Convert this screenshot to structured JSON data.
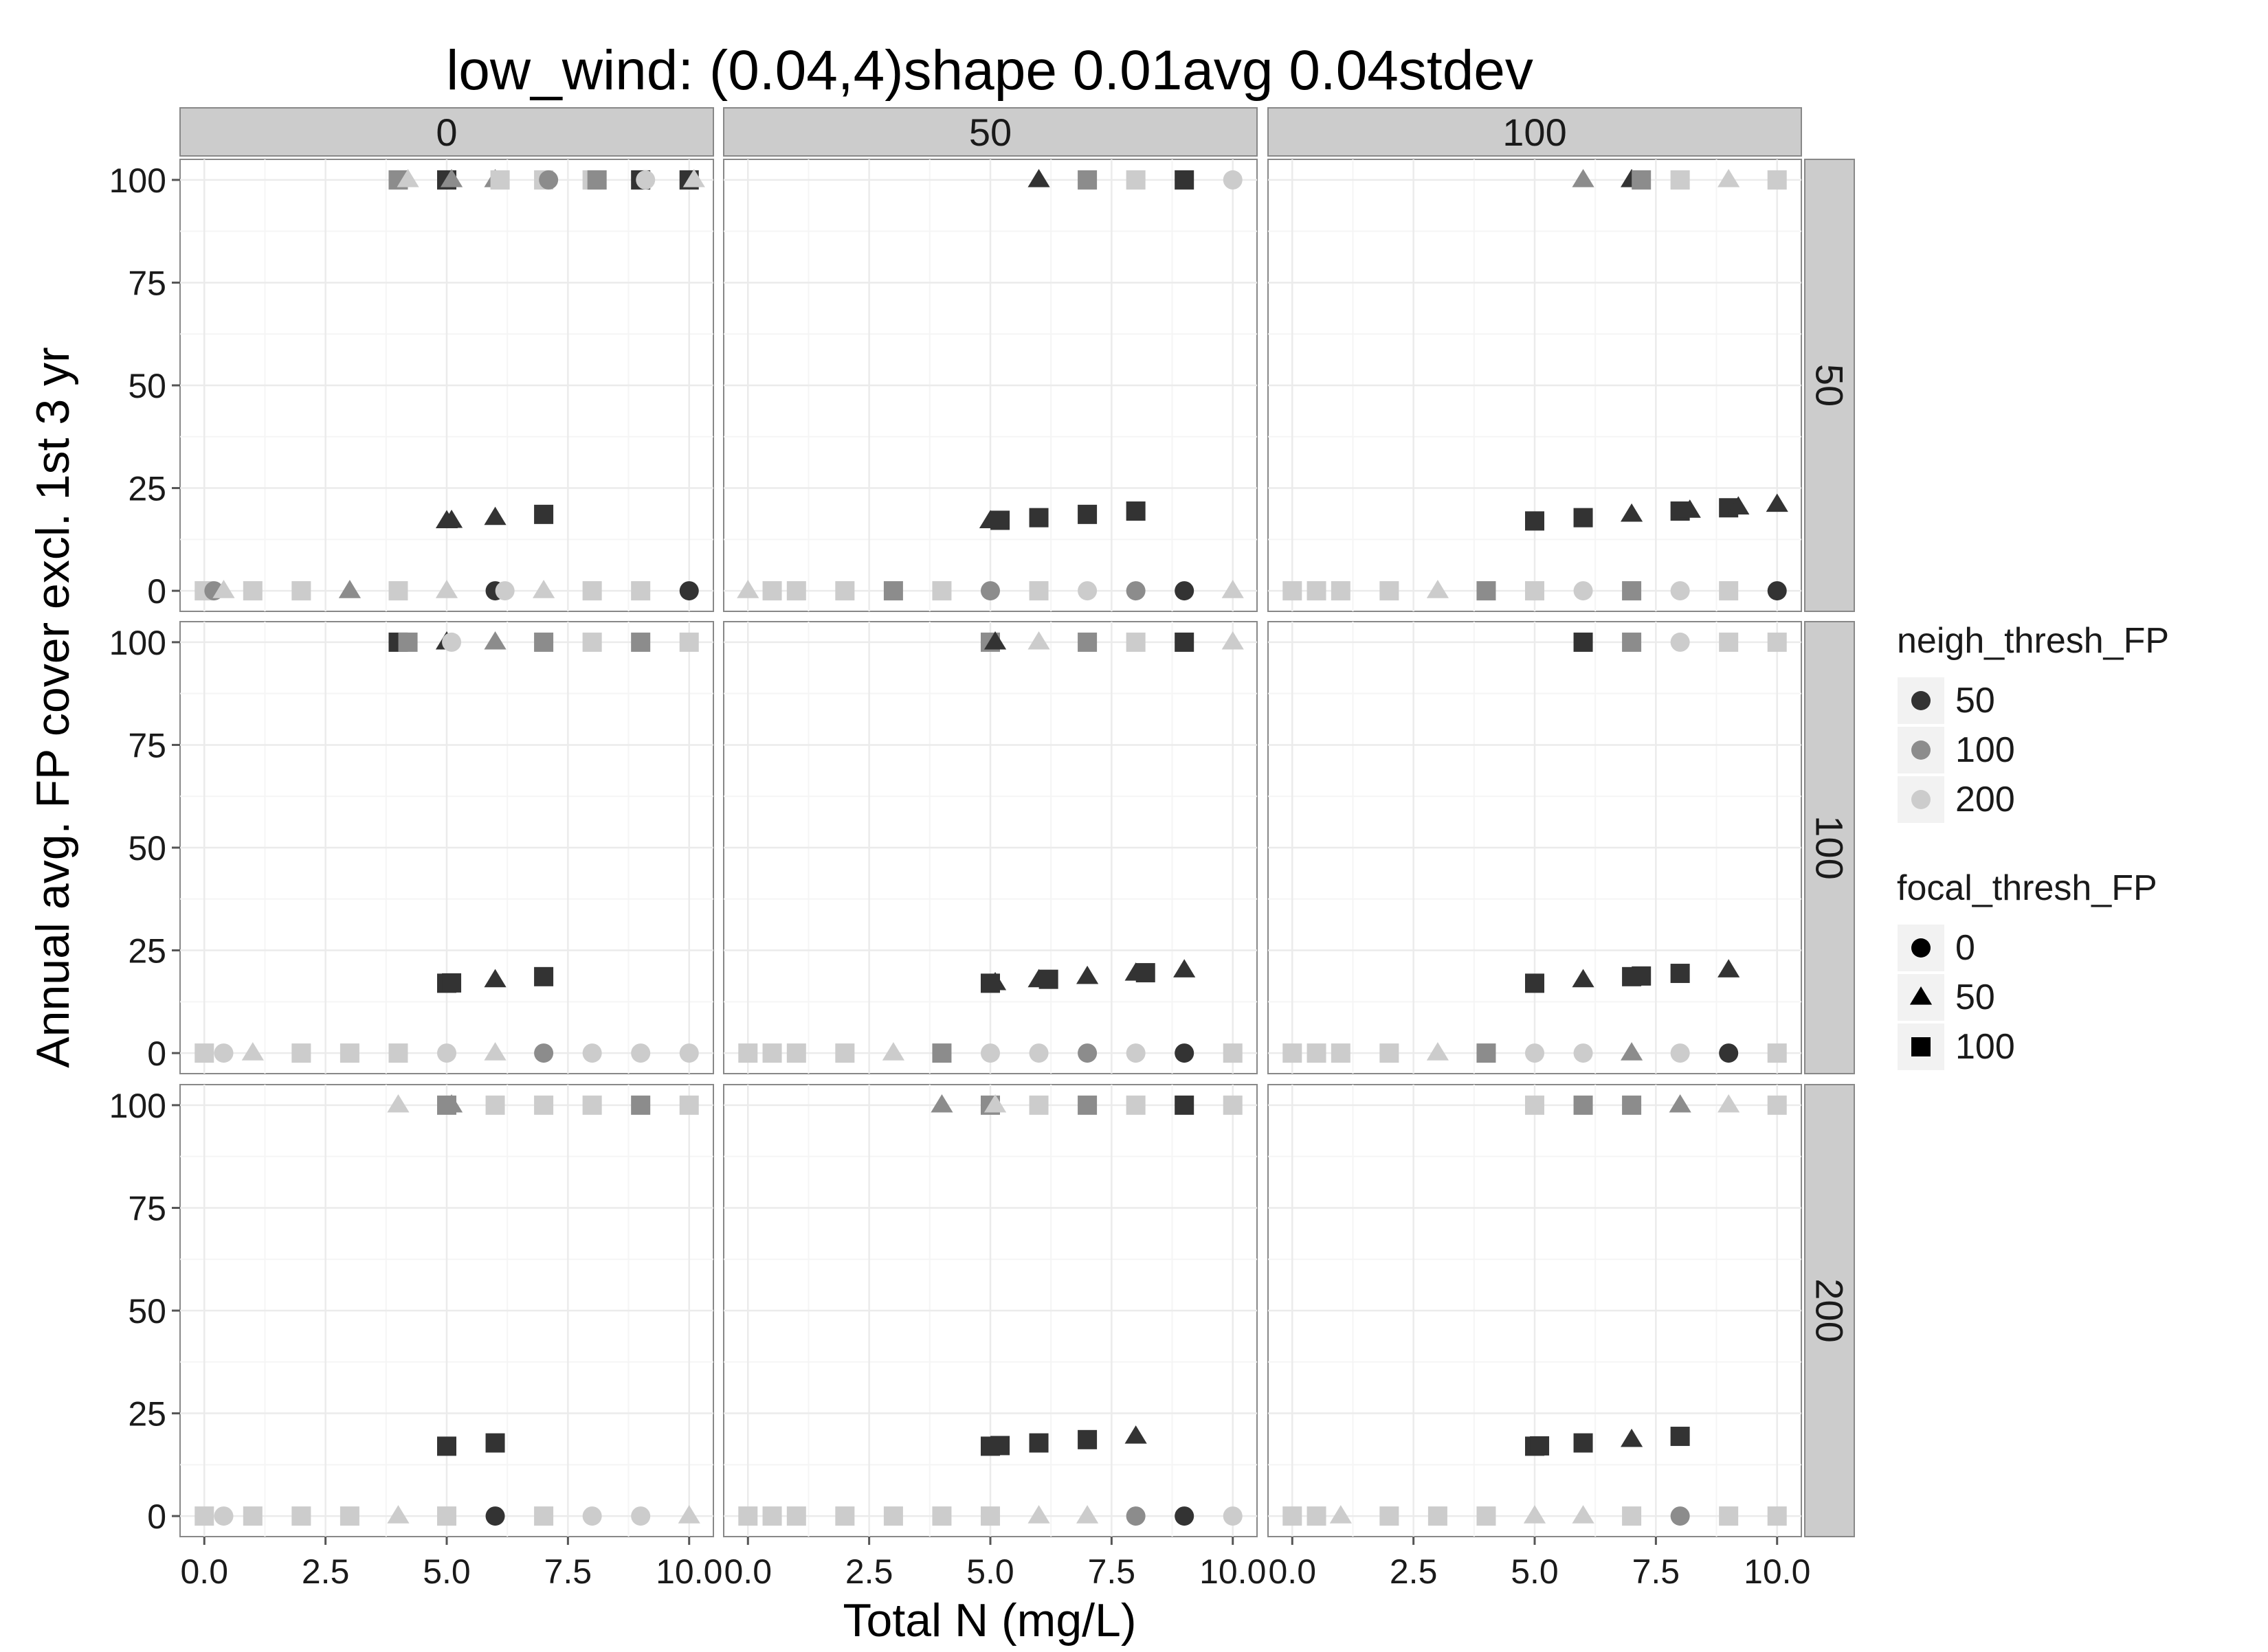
{
  "chart_data": {
    "type": "scatter",
    "title": "low_wind: (0.04,4)shape 0.01avg 0.04stdev",
    "xlabel": "Total N (mg/L)",
    "ylabel": "Annual avg. FP cover excl. 1st 3 yr",
    "xlim": [
      -0.5,
      10.5
    ],
    "ylim": [
      -5,
      105
    ],
    "x_ticks": [
      "0.0",
      "2.5",
      "5.0",
      "7.5",
      "10.0"
    ],
    "y_ticks": [
      "0",
      "25",
      "50",
      "75",
      "100"
    ],
    "grid": true,
    "facet_cols": [
      "0",
      "50",
      "100"
    ],
    "facet_rows": [
      "50",
      "100",
      "200"
    ],
    "legend_position": "right",
    "colors": {
      "50": "#333333",
      "100": "#8c8c8c",
      "200": "#cccccc"
    },
    "legends": [
      {
        "title": "neigh_thresh_FP",
        "kind": "color",
        "entries": [
          "50",
          "100",
          "200"
        ]
      },
      {
        "title": "focal_thresh_FP",
        "kind": "shape",
        "entries": [
          {
            "label": "0",
            "shape": "circle"
          },
          {
            "label": "50",
            "shape": "triangle"
          },
          {
            "label": "100",
            "shape": "square"
          }
        ]
      }
    ],
    "panels": [
      {
        "col": "0",
        "row": "50",
        "top": [
          [
            4,
            "100",
            "s"
          ],
          [
            4.2,
            "200",
            "t"
          ],
          [
            5,
            "50",
            "s"
          ],
          [
            5.1,
            "100",
            "t"
          ],
          [
            6,
            "100",
            "t"
          ],
          [
            6.1,
            "200",
            "s"
          ],
          [
            7,
            "200",
            "s"
          ],
          [
            7.1,
            "100",
            "c"
          ],
          [
            8,
            "200",
            "s"
          ],
          [
            8.1,
            "100",
            "s"
          ],
          [
            9,
            "50",
            "s"
          ],
          [
            9.1,
            "200",
            "c"
          ],
          [
            10,
            "50",
            "s"
          ],
          [
            10.1,
            "200",
            "t"
          ]
        ],
        "mid": [
          [
            5,
            "50",
            "t"
          ],
          [
            5.1,
            "50",
            "t"
          ],
          [
            6,
            "50",
            "t"
          ],
          [
            7,
            "50",
            "s"
          ]
        ],
        "bottom": [
          [
            0,
            "200",
            "s"
          ],
          [
            0.2,
            "100",
            "c"
          ],
          [
            0.4,
            "200",
            "t"
          ],
          [
            1,
            "200",
            "s"
          ],
          [
            2,
            "200",
            "s"
          ],
          [
            3,
            "100",
            "t"
          ],
          [
            4,
            "200",
            "s"
          ],
          [
            5,
            "200",
            "t"
          ],
          [
            6,
            "50",
            "c"
          ],
          [
            6.2,
            "200",
            "c"
          ],
          [
            7,
            "200",
            "t"
          ],
          [
            8,
            "200",
            "s"
          ],
          [
            9,
            "200",
            "s"
          ],
          [
            10,
            "50",
            "c"
          ]
        ]
      },
      {
        "col": "50",
        "row": "50",
        "top": [
          [
            6,
            "50",
            "t"
          ],
          [
            7,
            "100",
            "s"
          ],
          [
            8,
            "200",
            "s"
          ],
          [
            9,
            "50",
            "s"
          ],
          [
            10,
            "200",
            "c"
          ]
        ],
        "mid": [
          [
            5,
            "50",
            "t"
          ],
          [
            5.2,
            "50",
            "s"
          ],
          [
            6,
            "50",
            "s"
          ],
          [
            7,
            "50",
            "s"
          ],
          [
            8,
            "50",
            "s"
          ]
        ],
        "bottom": [
          [
            0,
            "200",
            "t"
          ],
          [
            0.5,
            "200",
            "s"
          ],
          [
            1,
            "200",
            "s"
          ],
          [
            2,
            "200",
            "s"
          ],
          [
            3,
            "100",
            "s"
          ],
          [
            4,
            "200",
            "s"
          ],
          [
            5,
            "100",
            "c"
          ],
          [
            6,
            "200",
            "s"
          ],
          [
            7,
            "200",
            "c"
          ],
          [
            8,
            "100",
            "c"
          ],
          [
            9,
            "50",
            "c"
          ],
          [
            10,
            "200",
            "t"
          ]
        ]
      },
      {
        "col": "100",
        "row": "50",
        "top": [
          [
            6,
            "100",
            "t"
          ],
          [
            7,
            "50",
            "t"
          ],
          [
            7.2,
            "100",
            "s"
          ],
          [
            8,
            "200",
            "s"
          ],
          [
            9,
            "200",
            "t"
          ],
          [
            10,
            "200",
            "s"
          ]
        ],
        "mid": [
          [
            5,
            "50",
            "s"
          ],
          [
            6,
            "50",
            "s"
          ],
          [
            7,
            "50",
            "t"
          ],
          [
            8,
            "50",
            "s"
          ],
          [
            8.2,
            "50",
            "t"
          ],
          [
            9,
            "50",
            "s"
          ],
          [
            9.2,
            "50",
            "t"
          ],
          [
            10,
            "50",
            "t"
          ]
        ],
        "bottom": [
          [
            0,
            "200",
            "s"
          ],
          [
            0.5,
            "200",
            "s"
          ],
          [
            1,
            "200",
            "s"
          ],
          [
            2,
            "200",
            "s"
          ],
          [
            3,
            "200",
            "t"
          ],
          [
            4,
            "100",
            "s"
          ],
          [
            5,
            "200",
            "s"
          ],
          [
            6,
            "200",
            "c"
          ],
          [
            7,
            "100",
            "s"
          ],
          [
            8,
            "200",
            "c"
          ],
          [
            9,
            "200",
            "s"
          ],
          [
            10,
            "50",
            "c"
          ]
        ]
      },
      {
        "col": "0",
        "row": "100",
        "top": [
          [
            4,
            "50",
            "s"
          ],
          [
            4.2,
            "100",
            "s"
          ],
          [
            5,
            "50",
            "t"
          ],
          [
            5.1,
            "200",
            "c"
          ],
          [
            6,
            "100",
            "t"
          ],
          [
            7,
            "100",
            "s"
          ],
          [
            8,
            "200",
            "s"
          ],
          [
            9,
            "100",
            "s"
          ],
          [
            10,
            "200",
            "s"
          ]
        ],
        "mid": [
          [
            5,
            "50",
            "s"
          ],
          [
            5.1,
            "50",
            "s"
          ],
          [
            6,
            "50",
            "t"
          ],
          [
            7,
            "50",
            "s"
          ]
        ],
        "bottom": [
          [
            0,
            "200",
            "s"
          ],
          [
            0.4,
            "200",
            "c"
          ],
          [
            1,
            "200",
            "t"
          ],
          [
            2,
            "200",
            "s"
          ],
          [
            3,
            "200",
            "s"
          ],
          [
            4,
            "200",
            "s"
          ],
          [
            5,
            "200",
            "c"
          ],
          [
            6,
            "200",
            "t"
          ],
          [
            7,
            "100",
            "c"
          ],
          [
            8,
            "200",
            "c"
          ],
          [
            9,
            "200",
            "c"
          ],
          [
            10,
            "200",
            "c"
          ]
        ]
      },
      {
        "col": "50",
        "row": "100",
        "top": [
          [
            5,
            "100",
            "s"
          ],
          [
            5.1,
            "50",
            "t"
          ],
          [
            6,
            "200",
            "t"
          ],
          [
            7,
            "100",
            "s"
          ],
          [
            8,
            "200",
            "s"
          ],
          [
            9,
            "50",
            "s"
          ],
          [
            10,
            "200",
            "t"
          ]
        ],
        "mid": [
          [
            5,
            "50",
            "s"
          ],
          [
            5.1,
            "50",
            "t"
          ],
          [
            6,
            "50",
            "t"
          ],
          [
            6.2,
            "50",
            "s"
          ],
          [
            7,
            "50",
            "t"
          ],
          [
            8,
            "50",
            "t"
          ],
          [
            8.2,
            "50",
            "s"
          ],
          [
            9,
            "50",
            "t"
          ]
        ],
        "bottom": [
          [
            0,
            "200",
            "s"
          ],
          [
            0.5,
            "200",
            "s"
          ],
          [
            1,
            "200",
            "s"
          ],
          [
            2,
            "200",
            "s"
          ],
          [
            3,
            "200",
            "t"
          ],
          [
            4,
            "100",
            "s"
          ],
          [
            5,
            "200",
            "c"
          ],
          [
            6,
            "200",
            "c"
          ],
          [
            7,
            "100",
            "c"
          ],
          [
            8,
            "200",
            "c"
          ],
          [
            9,
            "50",
            "c"
          ],
          [
            10,
            "200",
            "s"
          ]
        ]
      },
      {
        "col": "100",
        "row": "100",
        "top": [
          [
            6,
            "50",
            "s"
          ],
          [
            7,
            "100",
            "s"
          ],
          [
            8,
            "200",
            "c"
          ],
          [
            9,
            "200",
            "s"
          ],
          [
            10,
            "200",
            "s"
          ]
        ],
        "mid": [
          [
            5,
            "50",
            "s"
          ],
          [
            6,
            "50",
            "t"
          ],
          [
            7,
            "50",
            "s"
          ],
          [
            7.2,
            "50",
            "s"
          ],
          [
            8,
            "50",
            "s"
          ],
          [
            9,
            "50",
            "t"
          ]
        ],
        "bottom": [
          [
            0,
            "200",
            "s"
          ],
          [
            0.5,
            "200",
            "s"
          ],
          [
            1,
            "200",
            "s"
          ],
          [
            2,
            "200",
            "s"
          ],
          [
            3,
            "200",
            "t"
          ],
          [
            4,
            "100",
            "s"
          ],
          [
            5,
            "200",
            "c"
          ],
          [
            6,
            "200",
            "c"
          ],
          [
            7,
            "100",
            "t"
          ],
          [
            8,
            "200",
            "c"
          ],
          [
            9,
            "50",
            "c"
          ],
          [
            10,
            "200",
            "s"
          ]
        ]
      },
      {
        "col": "0",
        "row": "200",
        "top": [
          [
            4,
            "200",
            "t"
          ],
          [
            5,
            "100",
            "s"
          ],
          [
            5.1,
            "100",
            "t"
          ],
          [
            6,
            "200",
            "s"
          ],
          [
            7,
            "200",
            "s"
          ],
          [
            8,
            "200",
            "s"
          ],
          [
            9,
            "100",
            "s"
          ],
          [
            10,
            "200",
            "s"
          ]
        ],
        "mid": [
          [
            5,
            "50",
            "s"
          ],
          [
            6,
            "50",
            "s"
          ]
        ],
        "bottom": [
          [
            0,
            "200",
            "s"
          ],
          [
            0.4,
            "200",
            "c"
          ],
          [
            1,
            "200",
            "s"
          ],
          [
            2,
            "200",
            "s"
          ],
          [
            3,
            "200",
            "s"
          ],
          [
            4,
            "200",
            "t"
          ],
          [
            5,
            "200",
            "s"
          ],
          [
            6,
            "50",
            "c"
          ],
          [
            7,
            "200",
            "s"
          ],
          [
            8,
            "200",
            "c"
          ],
          [
            9,
            "200",
            "c"
          ],
          [
            10,
            "200",
            "t"
          ]
        ]
      },
      {
        "col": "50",
        "row": "200",
        "top": [
          [
            4,
            "100",
            "t"
          ],
          [
            5,
            "100",
            "s"
          ],
          [
            5.1,
            "200",
            "t"
          ],
          [
            6,
            "200",
            "s"
          ],
          [
            7,
            "100",
            "s"
          ],
          [
            8,
            "200",
            "s"
          ],
          [
            9,
            "50",
            "s"
          ],
          [
            10,
            "200",
            "s"
          ]
        ],
        "mid": [
          [
            5,
            "50",
            "s"
          ],
          [
            5.2,
            "50",
            "s"
          ],
          [
            6,
            "50",
            "s"
          ],
          [
            7,
            "50",
            "s"
          ],
          [
            8,
            "50",
            "t"
          ]
        ],
        "bottom": [
          [
            0,
            "200",
            "s"
          ],
          [
            0.5,
            "200",
            "s"
          ],
          [
            1,
            "200",
            "s"
          ],
          [
            2,
            "200",
            "s"
          ],
          [
            3,
            "200",
            "s"
          ],
          [
            4,
            "200",
            "s"
          ],
          [
            5,
            "200",
            "s"
          ],
          [
            6,
            "200",
            "t"
          ],
          [
            7,
            "200",
            "t"
          ],
          [
            8,
            "100",
            "c"
          ],
          [
            9,
            "50",
            "c"
          ],
          [
            10,
            "200",
            "c"
          ]
        ]
      },
      {
        "col": "100",
        "row": "200",
        "top": [
          [
            5,
            "200",
            "s"
          ],
          [
            6,
            "100",
            "s"
          ],
          [
            7,
            "100",
            "s"
          ],
          [
            8,
            "100",
            "t"
          ],
          [
            9,
            "200",
            "t"
          ],
          [
            10,
            "200",
            "s"
          ]
        ],
        "mid": [
          [
            5,
            "50",
            "s"
          ],
          [
            5.1,
            "50",
            "s"
          ],
          [
            6,
            "50",
            "s"
          ],
          [
            7,
            "50",
            "t"
          ],
          [
            8,
            "50",
            "s"
          ]
        ],
        "bottom": [
          [
            0,
            "200",
            "s"
          ],
          [
            0.5,
            "200",
            "s"
          ],
          [
            1,
            "200",
            "t"
          ],
          [
            2,
            "200",
            "s"
          ],
          [
            3,
            "200",
            "s"
          ],
          [
            4,
            "200",
            "s"
          ],
          [
            5,
            "200",
            "t"
          ],
          [
            6,
            "200",
            "t"
          ],
          [
            7,
            "200",
            "s"
          ],
          [
            8,
            "100",
            "c"
          ],
          [
            9,
            "200",
            "s"
          ],
          [
            10,
            "200",
            "s"
          ]
        ]
      }
    ]
  }
}
